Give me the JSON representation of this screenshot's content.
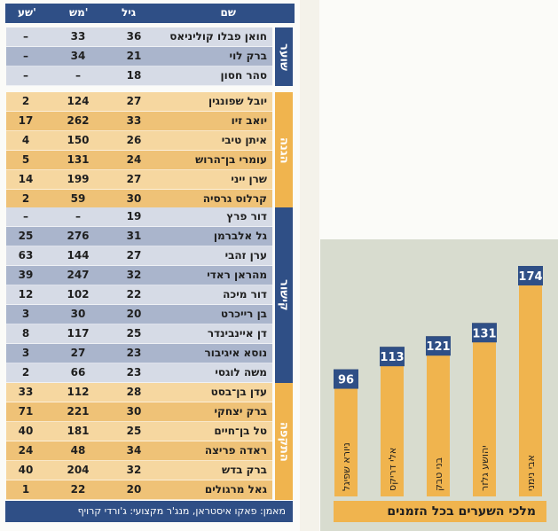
{
  "table": {
    "headers": {
      "name": "שם",
      "age": "גיל",
      "apps": "מש'",
      "goals": "שע'"
    },
    "sections": [
      {
        "label": "שוער",
        "color": "#2f4f86",
        "rows": [
          {
            "name": "חואן פבלו קוליניאס",
            "age": "36",
            "apps": "33",
            "goals": "–"
          },
          {
            "name": "ברק לוי",
            "age": "21",
            "apps": "34",
            "goals": "–"
          },
          {
            "name": "סהר חסון",
            "age": "18",
            "apps": "–",
            "goals": "–"
          }
        ]
      },
      {
        "label": "הגנה",
        "color": "#f0b44e",
        "rows": [
          {
            "name": "יובל שפונגין",
            "age": "27",
            "apps": "124",
            "goals": "2"
          },
          {
            "name": "יואב זיו",
            "age": "33",
            "apps": "262",
            "goals": "17"
          },
          {
            "name": "איתן טיבי",
            "age": "26",
            "apps": "150",
            "goals": "4"
          },
          {
            "name": "עומרי בן־הרוש",
            "age": "24",
            "apps": "131",
            "goals": "5"
          },
          {
            "name": "שרן ייני",
            "age": "27",
            "apps": "199",
            "goals": "14"
          },
          {
            "name": "קרלוס גרסיה",
            "age": "30",
            "apps": "59",
            "goals": "2"
          }
        ]
      },
      {
        "label": "קישור",
        "color": "#2f4f86",
        "rows": [
          {
            "name": "דור פרץ",
            "age": "19",
            "apps": "–",
            "goals": "–"
          },
          {
            "name": "גל אלברמן",
            "age": "31",
            "apps": "276",
            "goals": "25"
          },
          {
            "name": "ערן זהבי",
            "age": "27",
            "apps": "144",
            "goals": "63"
          },
          {
            "name": "מהראן ראדי",
            "age": "32",
            "apps": "247",
            "goals": "39"
          },
          {
            "name": "דור מיכה",
            "age": "22",
            "apps": "102",
            "goals": "12"
          },
          {
            "name": "בן רייכרט",
            "age": "20",
            "apps": "30",
            "goals": "3"
          },
          {
            "name": "דן איינבינדר",
            "age": "25",
            "apps": "117",
            "goals": "8"
          },
          {
            "name": "נוסא איגיבור",
            "age": "23",
            "apps": "27",
            "goals": "3"
          },
          {
            "name": "משה לוגסי",
            "age": "23",
            "apps": "66",
            "goals": "2"
          }
        ]
      },
      {
        "label": "התקפה",
        "color": "#f0b44e",
        "rows": [
          {
            "name": "עדן בן־בסט",
            "age": "28",
            "apps": "112",
            "goals": "33"
          },
          {
            "name": "ברק יצחקי",
            "age": "30",
            "apps": "221",
            "goals": "71"
          },
          {
            "name": "טל בן־חיים",
            "age": "25",
            "apps": "181",
            "goals": "40"
          },
          {
            "name": "ראדה פריצה",
            "age": "34",
            "apps": "48",
            "goals": "24"
          },
          {
            "name": "ברק בדש",
            "age": "32",
            "apps": "204",
            "goals": "40"
          },
          {
            "name": "גאל מרגולים",
            "age": "20",
            "apps": "22",
            "goals": "1"
          }
        ]
      }
    ],
    "footer": "מאמן: פאקו איסטראן, מנג'ר מקצועי: ג'ורדי קרויף"
  },
  "chart_data": {
    "type": "bar",
    "title": "מלכי השערים בכל הזמנים",
    "categories": [
      "ניורא שפיגל",
      "אלי דריקס",
      "בני טבק",
      "יהושע גלזר",
      "אבי נימני"
    ],
    "values": [
      96,
      113,
      121,
      131,
      174
    ],
    "ylim": [
      0,
      174
    ],
    "colors": {
      "bar": "#f0b44e",
      "value_box": "#2f4f86"
    }
  },
  "colors": {
    "blue": "#2f4f86",
    "gold": "#f0b44e"
  }
}
